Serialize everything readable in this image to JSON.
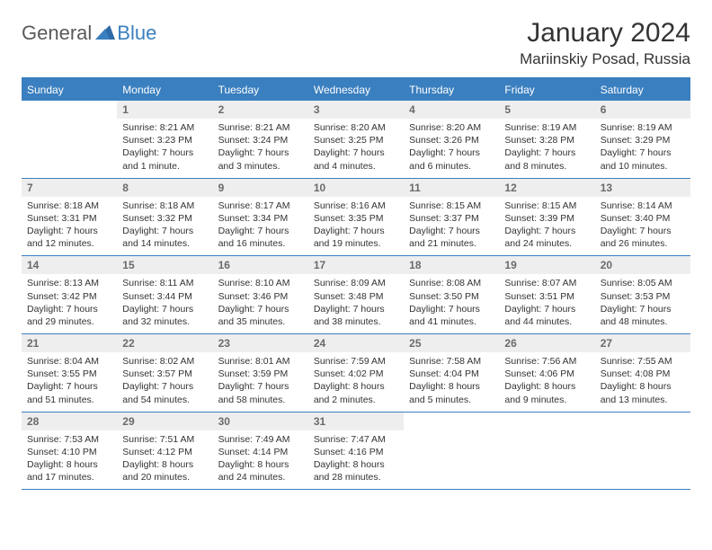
{
  "logo": {
    "text_left": "General",
    "text_right": "Blue"
  },
  "title": "January 2024",
  "location": "Mariinskiy Posad, Russia",
  "colors": {
    "header_bar": "#3a7fbf",
    "daynum_bg": "#eeeeee",
    "daynum_text": "#6a6a6a",
    "body_text": "#333333",
    "logo_gray": "#5a5a5a",
    "logo_blue": "#3a7fbf",
    "background": "#ffffff"
  },
  "weekdays": [
    "Sunday",
    "Monday",
    "Tuesday",
    "Wednesday",
    "Thursday",
    "Friday",
    "Saturday"
  ],
  "weeks": [
    [
      {
        "n": "",
        "sunrise": "",
        "sunset": "",
        "daylight": ""
      },
      {
        "n": "1",
        "sunrise": "Sunrise: 8:21 AM",
        "sunset": "Sunset: 3:23 PM",
        "daylight": "Daylight: 7 hours and 1 minute."
      },
      {
        "n": "2",
        "sunrise": "Sunrise: 8:21 AM",
        "sunset": "Sunset: 3:24 PM",
        "daylight": "Daylight: 7 hours and 3 minutes."
      },
      {
        "n": "3",
        "sunrise": "Sunrise: 8:20 AM",
        "sunset": "Sunset: 3:25 PM",
        "daylight": "Daylight: 7 hours and 4 minutes."
      },
      {
        "n": "4",
        "sunrise": "Sunrise: 8:20 AM",
        "sunset": "Sunset: 3:26 PM",
        "daylight": "Daylight: 7 hours and 6 minutes."
      },
      {
        "n": "5",
        "sunrise": "Sunrise: 8:19 AM",
        "sunset": "Sunset: 3:28 PM",
        "daylight": "Daylight: 7 hours and 8 minutes."
      },
      {
        "n": "6",
        "sunrise": "Sunrise: 8:19 AM",
        "sunset": "Sunset: 3:29 PM",
        "daylight": "Daylight: 7 hours and 10 minutes."
      }
    ],
    [
      {
        "n": "7",
        "sunrise": "Sunrise: 8:18 AM",
        "sunset": "Sunset: 3:31 PM",
        "daylight": "Daylight: 7 hours and 12 minutes."
      },
      {
        "n": "8",
        "sunrise": "Sunrise: 8:18 AM",
        "sunset": "Sunset: 3:32 PM",
        "daylight": "Daylight: 7 hours and 14 minutes."
      },
      {
        "n": "9",
        "sunrise": "Sunrise: 8:17 AM",
        "sunset": "Sunset: 3:34 PM",
        "daylight": "Daylight: 7 hours and 16 minutes."
      },
      {
        "n": "10",
        "sunrise": "Sunrise: 8:16 AM",
        "sunset": "Sunset: 3:35 PM",
        "daylight": "Daylight: 7 hours and 19 minutes."
      },
      {
        "n": "11",
        "sunrise": "Sunrise: 8:15 AM",
        "sunset": "Sunset: 3:37 PM",
        "daylight": "Daylight: 7 hours and 21 minutes."
      },
      {
        "n": "12",
        "sunrise": "Sunrise: 8:15 AM",
        "sunset": "Sunset: 3:39 PM",
        "daylight": "Daylight: 7 hours and 24 minutes."
      },
      {
        "n": "13",
        "sunrise": "Sunrise: 8:14 AM",
        "sunset": "Sunset: 3:40 PM",
        "daylight": "Daylight: 7 hours and 26 minutes."
      }
    ],
    [
      {
        "n": "14",
        "sunrise": "Sunrise: 8:13 AM",
        "sunset": "Sunset: 3:42 PM",
        "daylight": "Daylight: 7 hours and 29 minutes."
      },
      {
        "n": "15",
        "sunrise": "Sunrise: 8:11 AM",
        "sunset": "Sunset: 3:44 PM",
        "daylight": "Daylight: 7 hours and 32 minutes."
      },
      {
        "n": "16",
        "sunrise": "Sunrise: 8:10 AM",
        "sunset": "Sunset: 3:46 PM",
        "daylight": "Daylight: 7 hours and 35 minutes."
      },
      {
        "n": "17",
        "sunrise": "Sunrise: 8:09 AM",
        "sunset": "Sunset: 3:48 PM",
        "daylight": "Daylight: 7 hours and 38 minutes."
      },
      {
        "n": "18",
        "sunrise": "Sunrise: 8:08 AM",
        "sunset": "Sunset: 3:50 PM",
        "daylight": "Daylight: 7 hours and 41 minutes."
      },
      {
        "n": "19",
        "sunrise": "Sunrise: 8:07 AM",
        "sunset": "Sunset: 3:51 PM",
        "daylight": "Daylight: 7 hours and 44 minutes."
      },
      {
        "n": "20",
        "sunrise": "Sunrise: 8:05 AM",
        "sunset": "Sunset: 3:53 PM",
        "daylight": "Daylight: 7 hours and 48 minutes."
      }
    ],
    [
      {
        "n": "21",
        "sunrise": "Sunrise: 8:04 AM",
        "sunset": "Sunset: 3:55 PM",
        "daylight": "Daylight: 7 hours and 51 minutes."
      },
      {
        "n": "22",
        "sunrise": "Sunrise: 8:02 AM",
        "sunset": "Sunset: 3:57 PM",
        "daylight": "Daylight: 7 hours and 54 minutes."
      },
      {
        "n": "23",
        "sunrise": "Sunrise: 8:01 AM",
        "sunset": "Sunset: 3:59 PM",
        "daylight": "Daylight: 7 hours and 58 minutes."
      },
      {
        "n": "24",
        "sunrise": "Sunrise: 7:59 AM",
        "sunset": "Sunset: 4:02 PM",
        "daylight": "Daylight: 8 hours and 2 minutes."
      },
      {
        "n": "25",
        "sunrise": "Sunrise: 7:58 AM",
        "sunset": "Sunset: 4:04 PM",
        "daylight": "Daylight: 8 hours and 5 minutes."
      },
      {
        "n": "26",
        "sunrise": "Sunrise: 7:56 AM",
        "sunset": "Sunset: 4:06 PM",
        "daylight": "Daylight: 8 hours and 9 minutes."
      },
      {
        "n": "27",
        "sunrise": "Sunrise: 7:55 AM",
        "sunset": "Sunset: 4:08 PM",
        "daylight": "Daylight: 8 hours and 13 minutes."
      }
    ],
    [
      {
        "n": "28",
        "sunrise": "Sunrise: 7:53 AM",
        "sunset": "Sunset: 4:10 PM",
        "daylight": "Daylight: 8 hours and 17 minutes."
      },
      {
        "n": "29",
        "sunrise": "Sunrise: 7:51 AM",
        "sunset": "Sunset: 4:12 PM",
        "daylight": "Daylight: 8 hours and 20 minutes."
      },
      {
        "n": "30",
        "sunrise": "Sunrise: 7:49 AM",
        "sunset": "Sunset: 4:14 PM",
        "daylight": "Daylight: 8 hours and 24 minutes."
      },
      {
        "n": "31",
        "sunrise": "Sunrise: 7:47 AM",
        "sunset": "Sunset: 4:16 PM",
        "daylight": "Daylight: 8 hours and 28 minutes."
      },
      {
        "n": "",
        "sunrise": "",
        "sunset": "",
        "daylight": ""
      },
      {
        "n": "",
        "sunrise": "",
        "sunset": "",
        "daylight": ""
      },
      {
        "n": "",
        "sunrise": "",
        "sunset": "",
        "daylight": ""
      }
    ]
  ]
}
